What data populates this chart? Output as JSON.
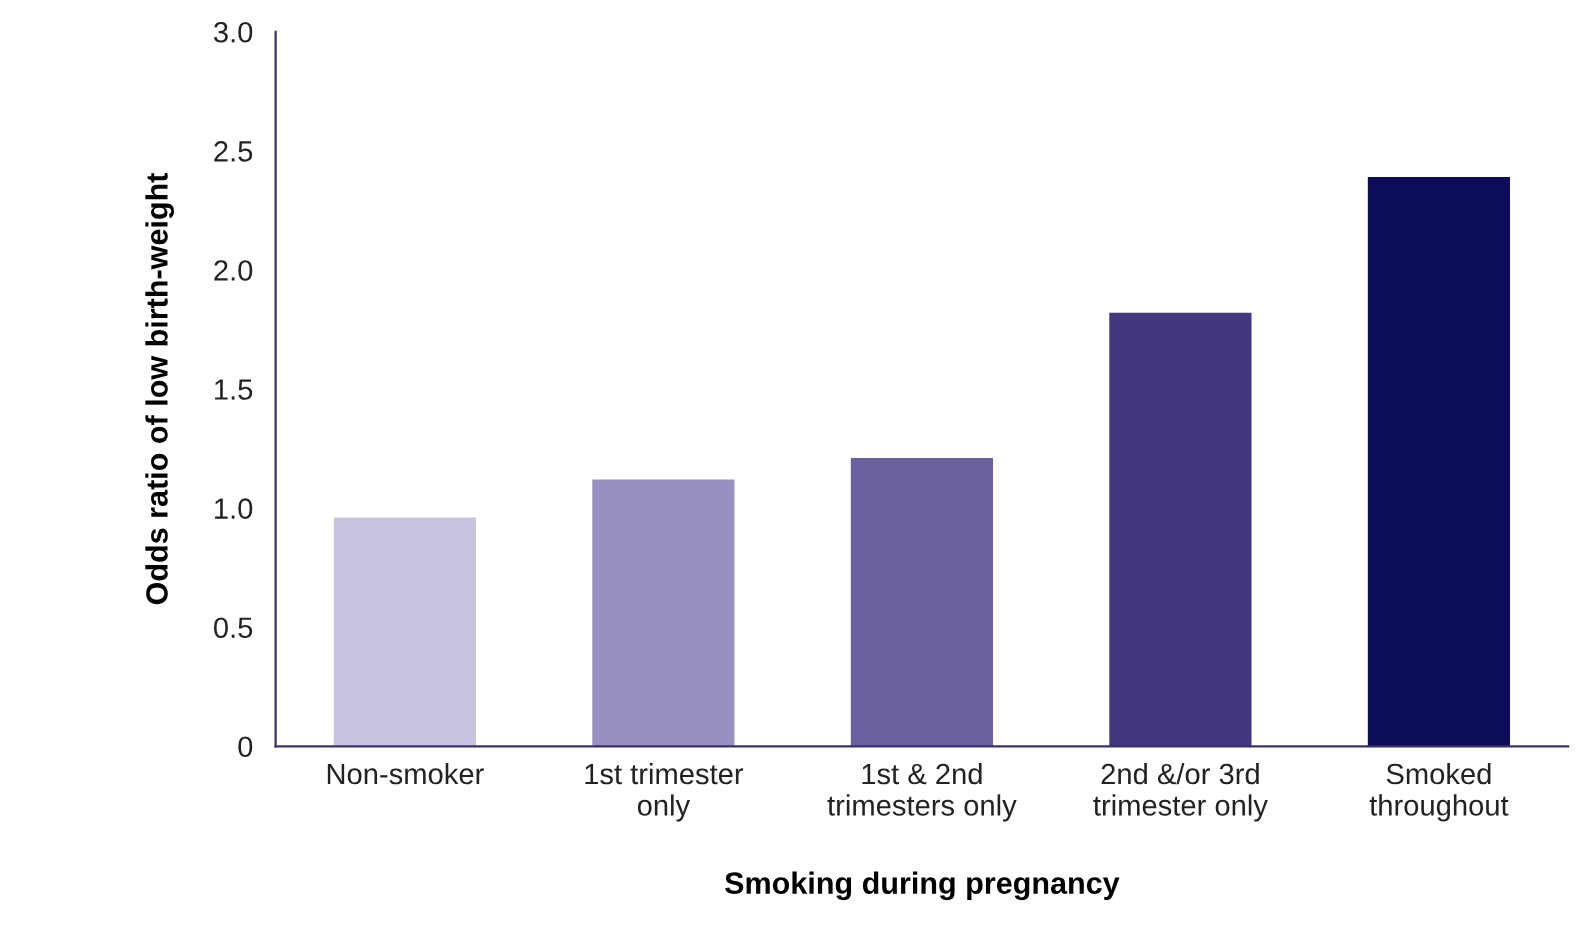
{
  "chart_data": {
    "type": "bar",
    "xlabel": "Smoking during pregnancy",
    "ylabel": "Odds ratio of low birth-weight",
    "categories": [
      "Non-smoker",
      "1st trimester\nonly",
      "1st & 2nd\ntrimesters only",
      "2nd &/or 3rd\ntrimester only",
      "Smoked\nthroughout"
    ],
    "values": [
      0.96,
      1.12,
      1.21,
      1.82,
      2.39
    ],
    "colors": [
      "#c9c3e0",
      "#9790c0",
      "#6c5fa0",
      "#423880",
      "#0c0c5a"
    ],
    "ylim": [
      0,
      3.0
    ],
    "yticks": [
      {
        "value": 0,
        "label": "0"
      },
      {
        "value": 0.5,
        "label": "0.5"
      },
      {
        "value": 1.0,
        "label": "1.0"
      },
      {
        "value": 1.5,
        "label": "1.5"
      },
      {
        "value": 2.0,
        "label": "2.0"
      },
      {
        "value": 2.5,
        "label": "2.5"
      },
      {
        "value": 3.0,
        "label": "3.0"
      }
    ],
    "grid": false
  }
}
